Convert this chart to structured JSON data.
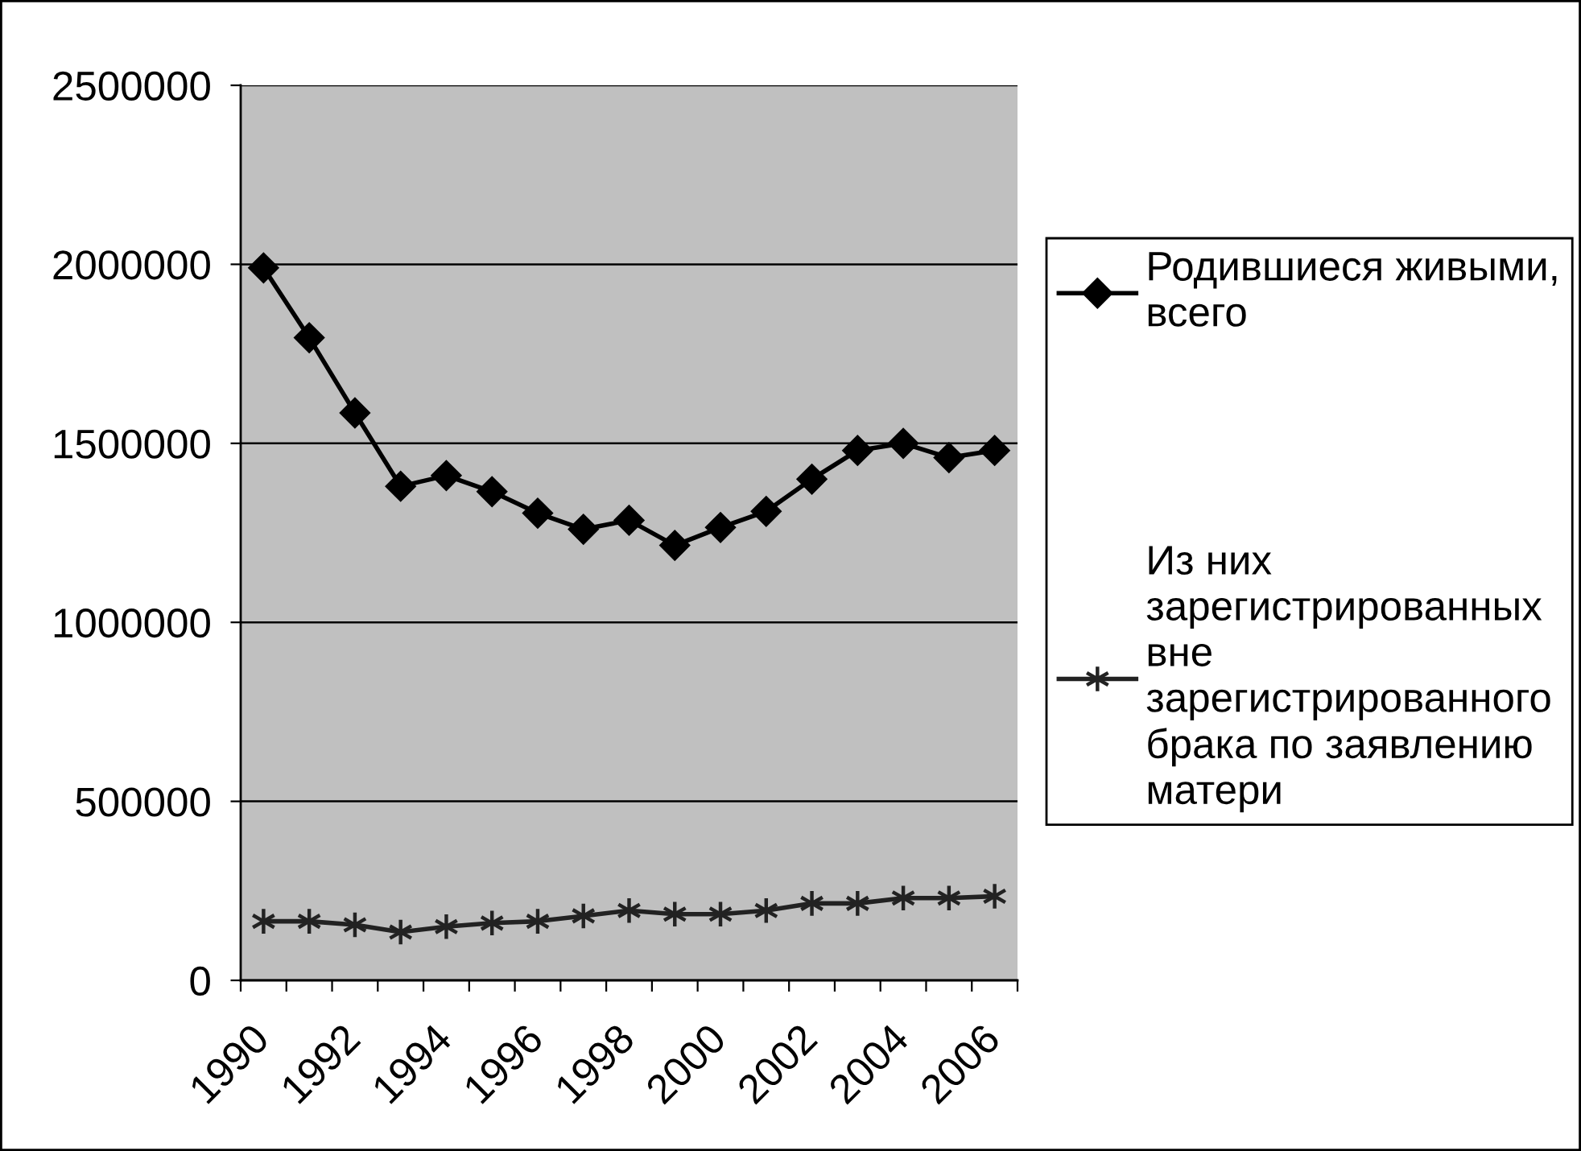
{
  "chart_data": {
    "type": "line",
    "categories": [
      "1990",
      null,
      "1992",
      null,
      "1994",
      null,
      "1996",
      null,
      "1998",
      null,
      "2000",
      null,
      "2002",
      null,
      "2004",
      null,
      "2006"
    ],
    "series": [
      {
        "name": "Родившиеся живыми, всего",
        "color": "#000000",
        "marker": "diamond",
        "values": [
          1990000,
          1795000,
          1585000,
          1380000,
          1410000,
          1365000,
          1305000,
          1260000,
          1285000,
          1215000,
          1265000,
          1310000,
          1400000,
          1480000,
          1500000,
          1460000,
          1480000
        ]
      },
      {
        "name": "Из них зарегистрированных вне зарегистрированного брака по заявлению матери",
        "color": "#222222",
        "marker": "cross",
        "values": [
          165000,
          165000,
          155000,
          135000,
          150000,
          160000,
          165000,
          180000,
          195000,
          185000,
          185000,
          195000,
          215000,
          215000,
          230000,
          230000,
          235000
        ]
      }
    ],
    "ylim": [
      0,
      2500000
    ],
    "yticks": [
      0,
      500000,
      1000000,
      1500000,
      2000000,
      2500000
    ],
    "grid": "y",
    "legend": "right",
    "line_style": "solid"
  }
}
